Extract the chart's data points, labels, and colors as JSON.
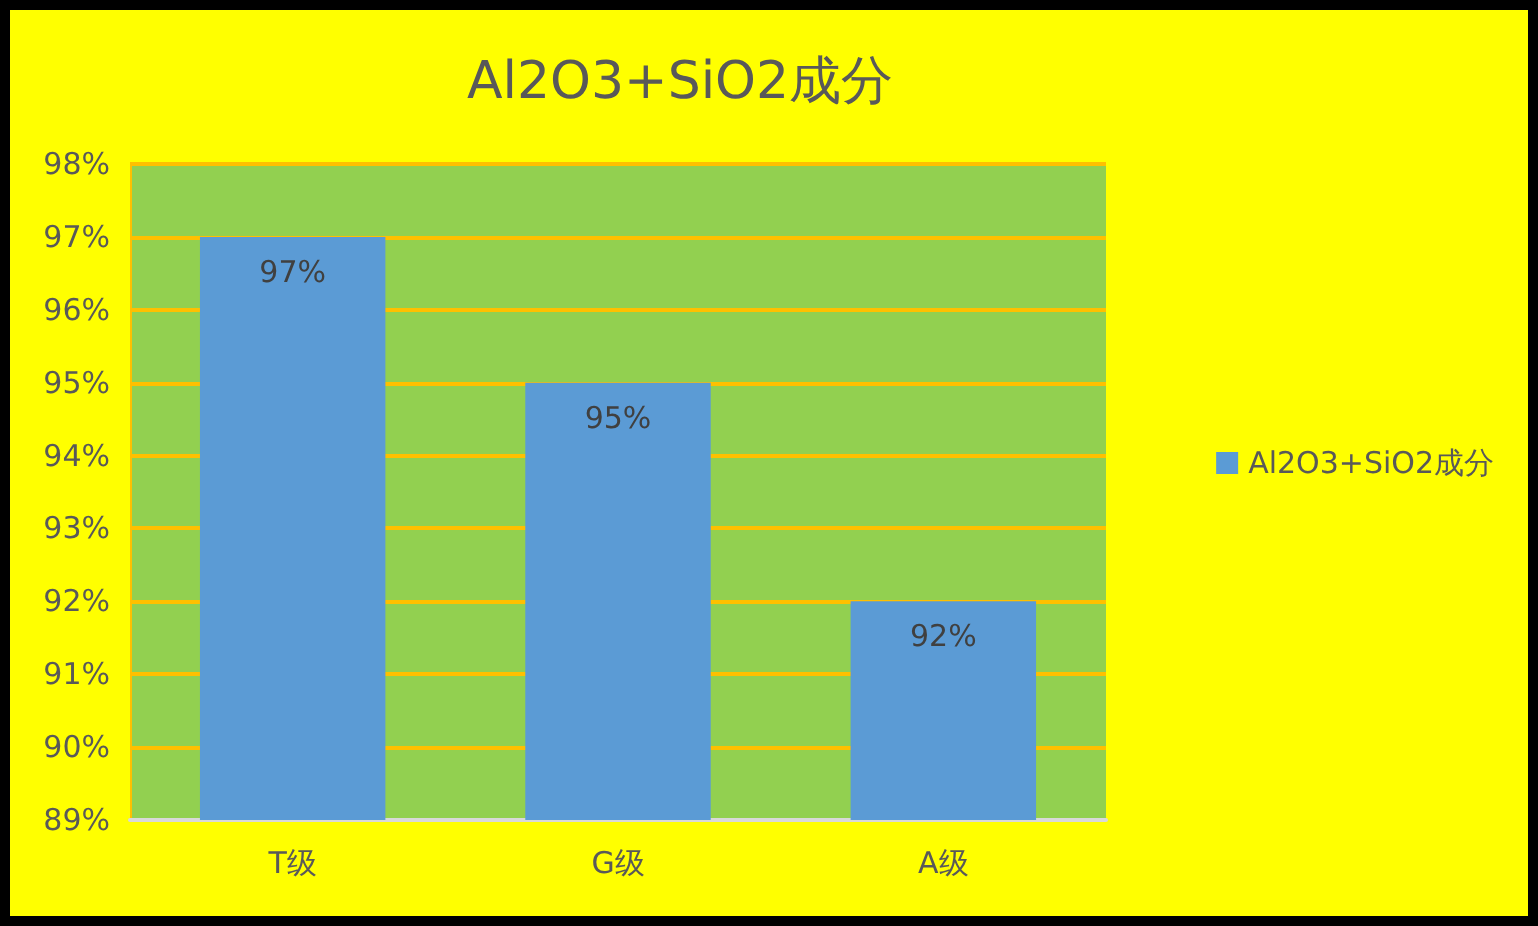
{
  "chart_data": {
    "type": "bar",
    "title": "Al2O3+SiO2成分",
    "categories": [
      "T级",
      "G级",
      "A级"
    ],
    "series": [
      {
        "name": "Al2O3+SiO2成分",
        "color": "#5b9bd5",
        "values": [
          97,
          95,
          92
        ],
        "value_labels": [
          "97%",
          "95%",
          "92%"
        ]
      }
    ],
    "ylim": [
      89,
      98
    ],
    "yticks": [
      {
        "value": 89,
        "label": "89%"
      },
      {
        "value": 90,
        "label": "90%"
      },
      {
        "value": 91,
        "label": "91%"
      },
      {
        "value": 92,
        "label": "92%"
      },
      {
        "value": 93,
        "label": "93%"
      },
      {
        "value": 94,
        "label": "94%"
      },
      {
        "value": 95,
        "label": "95%"
      },
      {
        "value": 96,
        "label": "96%"
      },
      {
        "value": 97,
        "label": "97%"
      },
      {
        "value": 98,
        "label": "98%"
      }
    ],
    "grid": "y",
    "legend": "right"
  }
}
